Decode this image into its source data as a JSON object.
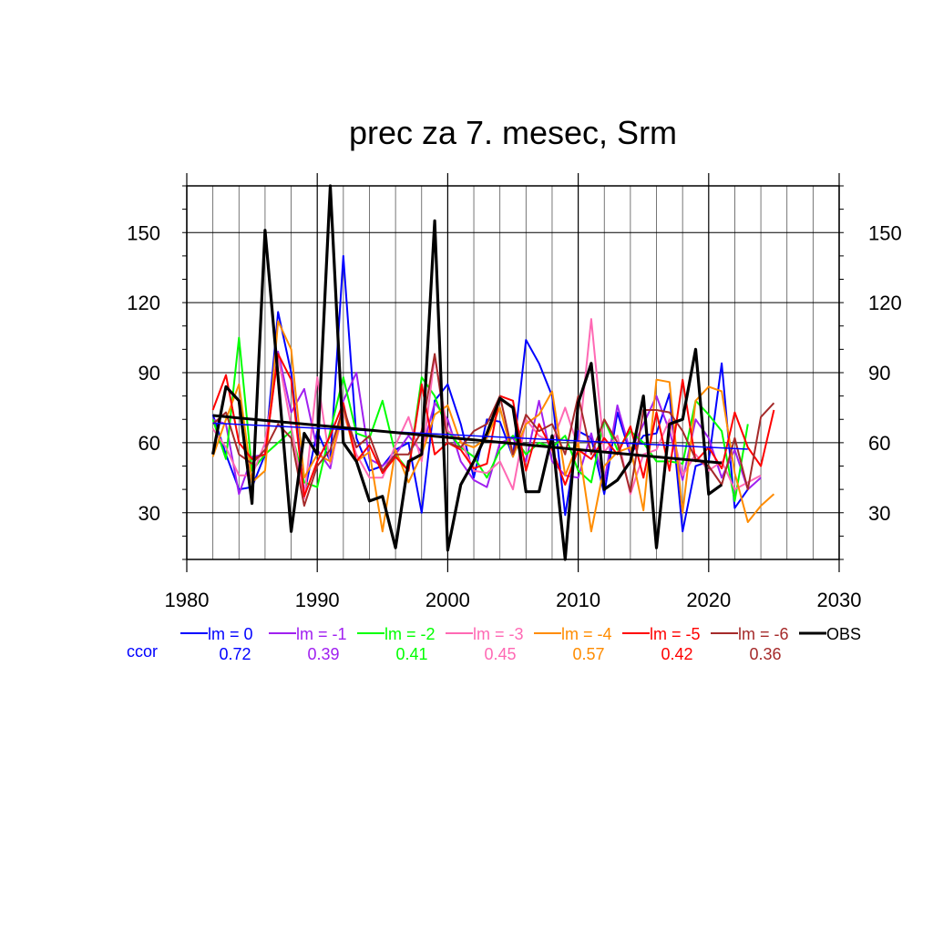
{
  "chart_data": {
    "type": "line",
    "title": "prec za 7. mesec, Srm",
    "xlim": [
      1980,
      2030
    ],
    "ylim": [
      10,
      170
    ],
    "x_ticks": [
      "1980",
      "1990",
      "2000",
      "2010",
      "2020",
      "2030"
    ],
    "y_ticks": [
      "30",
      "60",
      "90",
      "120",
      "150"
    ],
    "grid": true,
    "corr_label": "ccor",
    "legend_position": "bottom",
    "series": [
      {
        "name": "lm = 0",
        "color": "#0000ff",
        "corr": "0.72",
        "x0": 1982,
        "values": [
          72,
          55,
          40,
          41,
          55,
          116,
          90,
          38,
          65,
          52,
          140,
          62,
          48,
          50,
          57,
          60,
          30,
          78,
          85,
          68,
          45,
          70,
          69,
          54,
          104,
          94,
          80,
          29,
          65,
          62,
          38,
          73,
          55,
          63,
          64,
          81,
          22,
          50,
          52,
          94,
          32,
          40
        ]
      },
      {
        "name": "lm = -1",
        "color": "#a020f0",
        "corr": "0.39",
        "x0": 1982,
        "values": [
          70,
          68,
          38,
          54,
          55,
          99,
          73,
          83,
          57,
          49,
          78,
          90,
          53,
          50,
          55,
          63,
          56,
          77,
          70,
          52,
          44,
          41,
          60,
          62,
          52,
          78,
          52,
          46,
          45,
          64,
          43,
          76,
          56,
          68,
          80,
          65,
          44,
          70,
          62,
          45,
          57,
          40,
          45
        ]
      },
      {
        "name": "lm = -2",
        "color": "#00ff00",
        "corr": "0.41",
        "x0": 1982,
        "values": [
          70,
          53,
          105,
          48,
          55,
          60,
          65,
          43,
          41,
          65,
          88,
          64,
          62,
          78,
          55,
          48,
          88,
          80,
          65,
          58,
          54,
          45,
          57,
          63,
          55,
          60,
          58,
          63,
          48,
          43,
          70,
          57,
          65,
          60,
          52,
          52,
          51,
          78,
          72,
          65,
          35,
          68
        ]
      },
      {
        "name": "lm = -3",
        "color": "#ff69b4",
        "corr": "0.45",
        "x0": 1982,
        "values": [
          66,
          58,
          46,
          46,
          60,
          97,
          67,
          36,
          88,
          51,
          73,
          55,
          45,
          45,
          59,
          71,
          52,
          97,
          65,
          61,
          48,
          47,
          52,
          40,
          70,
          63,
          60,
          75,
          58,
          113,
          56,
          63,
          38,
          55,
          57,
          70,
          46,
          55,
          48,
          52,
          40,
          43,
          46
        ]
      },
      {
        "name": "lm = -4",
        "color": "#ff8c00",
        "corr": "0.57",
        "x0": 1982,
        "values": [
          54,
          70,
          85,
          43,
          48,
          112,
          100,
          45,
          55,
          52,
          75,
          52,
          56,
          22,
          57,
          43,
          55,
          72,
          76,
          60,
          58,
          62,
          75,
          54,
          68,
          72,
          82,
          46,
          60,
          22,
          50,
          56,
          58,
          31,
          87,
          86,
          30,
          78,
          84,
          82,
          47,
          26,
          33,
          38
        ]
      },
      {
        "name": "lm = -5",
        "color": "#ff0000",
        "corr": "0.42",
        "x0": 1982,
        "values": [
          74,
          89,
          60,
          53,
          55,
          98,
          87,
          37,
          52,
          63,
          77,
          52,
          59,
          47,
          54,
          48,
          85,
          55,
          60,
          57,
          49,
          51,
          80,
          78,
          48,
          68,
          57,
          42,
          57,
          53,
          62,
          55,
          67,
          45,
          73,
          48,
          87,
          52,
          58,
          49,
          73,
          58,
          50,
          74
        ]
      },
      {
        "name": "lm = -6",
        "color": "#a52a2a",
        "corr": "0.36",
        "x0": 1982,
        "values": [
          68,
          73,
          55,
          51,
          57,
          68,
          62,
          33,
          50,
          57,
          75,
          58,
          63,
          48,
          55,
          55,
          65,
          98,
          60,
          58,
          65,
          68,
          80,
          55,
          72,
          65,
          68,
          55,
          80,
          55,
          70,
          60,
          39,
          74,
          74,
          73,
          65,
          53,
          50,
          42,
          62,
          40,
          71,
          77
        ]
      },
      {
        "name": "OBS",
        "color": "#000000",
        "corr": "",
        "x0": 1982,
        "values": [
          55,
          84,
          78,
          34,
          151,
          88,
          22,
          64,
          55,
          170,
          60,
          52,
          35,
          37,
          15,
          52,
          55,
          155,
          14,
          42,
          52,
          64,
          79,
          75,
          39,
          39,
          63,
          10,
          77,
          94,
          40,
          44,
          52,
          80,
          15,
          68,
          70,
          100,
          38,
          42
        ]
      }
    ]
  }
}
